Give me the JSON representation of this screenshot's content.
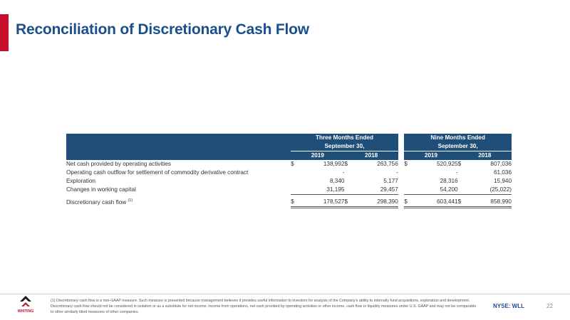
{
  "slide": {
    "title": "Reconciliation of Discretionary Cash Flow",
    "ticker": "NYSE: WLL",
    "page_number": "22",
    "logo_text": "WHITING",
    "colors": {
      "title": "#1b4f8c",
      "accent": "#c8102e",
      "table_header": "#1f4e79"
    }
  },
  "table": {
    "groups": [
      {
        "line1": "Three Months Ended",
        "line2": "September 30,"
      },
      {
        "line1": "Nine Months Ended",
        "line2": "September 30,"
      }
    ],
    "years": [
      "2019",
      "2018",
      "2019",
      "2018"
    ],
    "rows": [
      {
        "label": "Net cash provided by operating activities",
        "sup": "",
        "cells": [
          "$",
          "138,992",
          "$",
          "263,756",
          "$",
          "520,925",
          "$",
          "807,036"
        ]
      },
      {
        "label": "Operating cash outflow for settlement of commodity derivative contract",
        "sup": "",
        "cells": [
          "",
          "-",
          "",
          "-",
          "",
          "-",
          "",
          "61,036"
        ]
      },
      {
        "label": "Exploration",
        "sup": "",
        "cells": [
          "",
          "8,340",
          "",
          "5,177",
          "",
          "28,316",
          "",
          "15,940"
        ]
      },
      {
        "label": "Changes in working capital",
        "sup": "",
        "cells": [
          "",
          "31,195",
          "",
          "29,457",
          "",
          "54,200",
          "",
          "(25,022)"
        ]
      },
      {
        "label": "Discretionary cash flow",
        "sup": "(1)",
        "cells": [
          "$",
          "178,527",
          "$",
          "298,390",
          "$",
          "603,441",
          "$",
          "858,990"
        ]
      }
    ]
  },
  "footnote": "(1)   Discretionary cash flow is a non-GAAP measure.  Such measure is presented because management believes it provides useful information to investors for analysis of the Company's ability to internally fund acquisitions, exploration and development.  Discretionary cash flow should not be considered in isolation or as a substitute for net income, income from operations, net cash provided by operating activities or other income, cash flow or liquidity measures under U.S. GAAP and may not be comparable to other similarly titled measures of other companies."
}
